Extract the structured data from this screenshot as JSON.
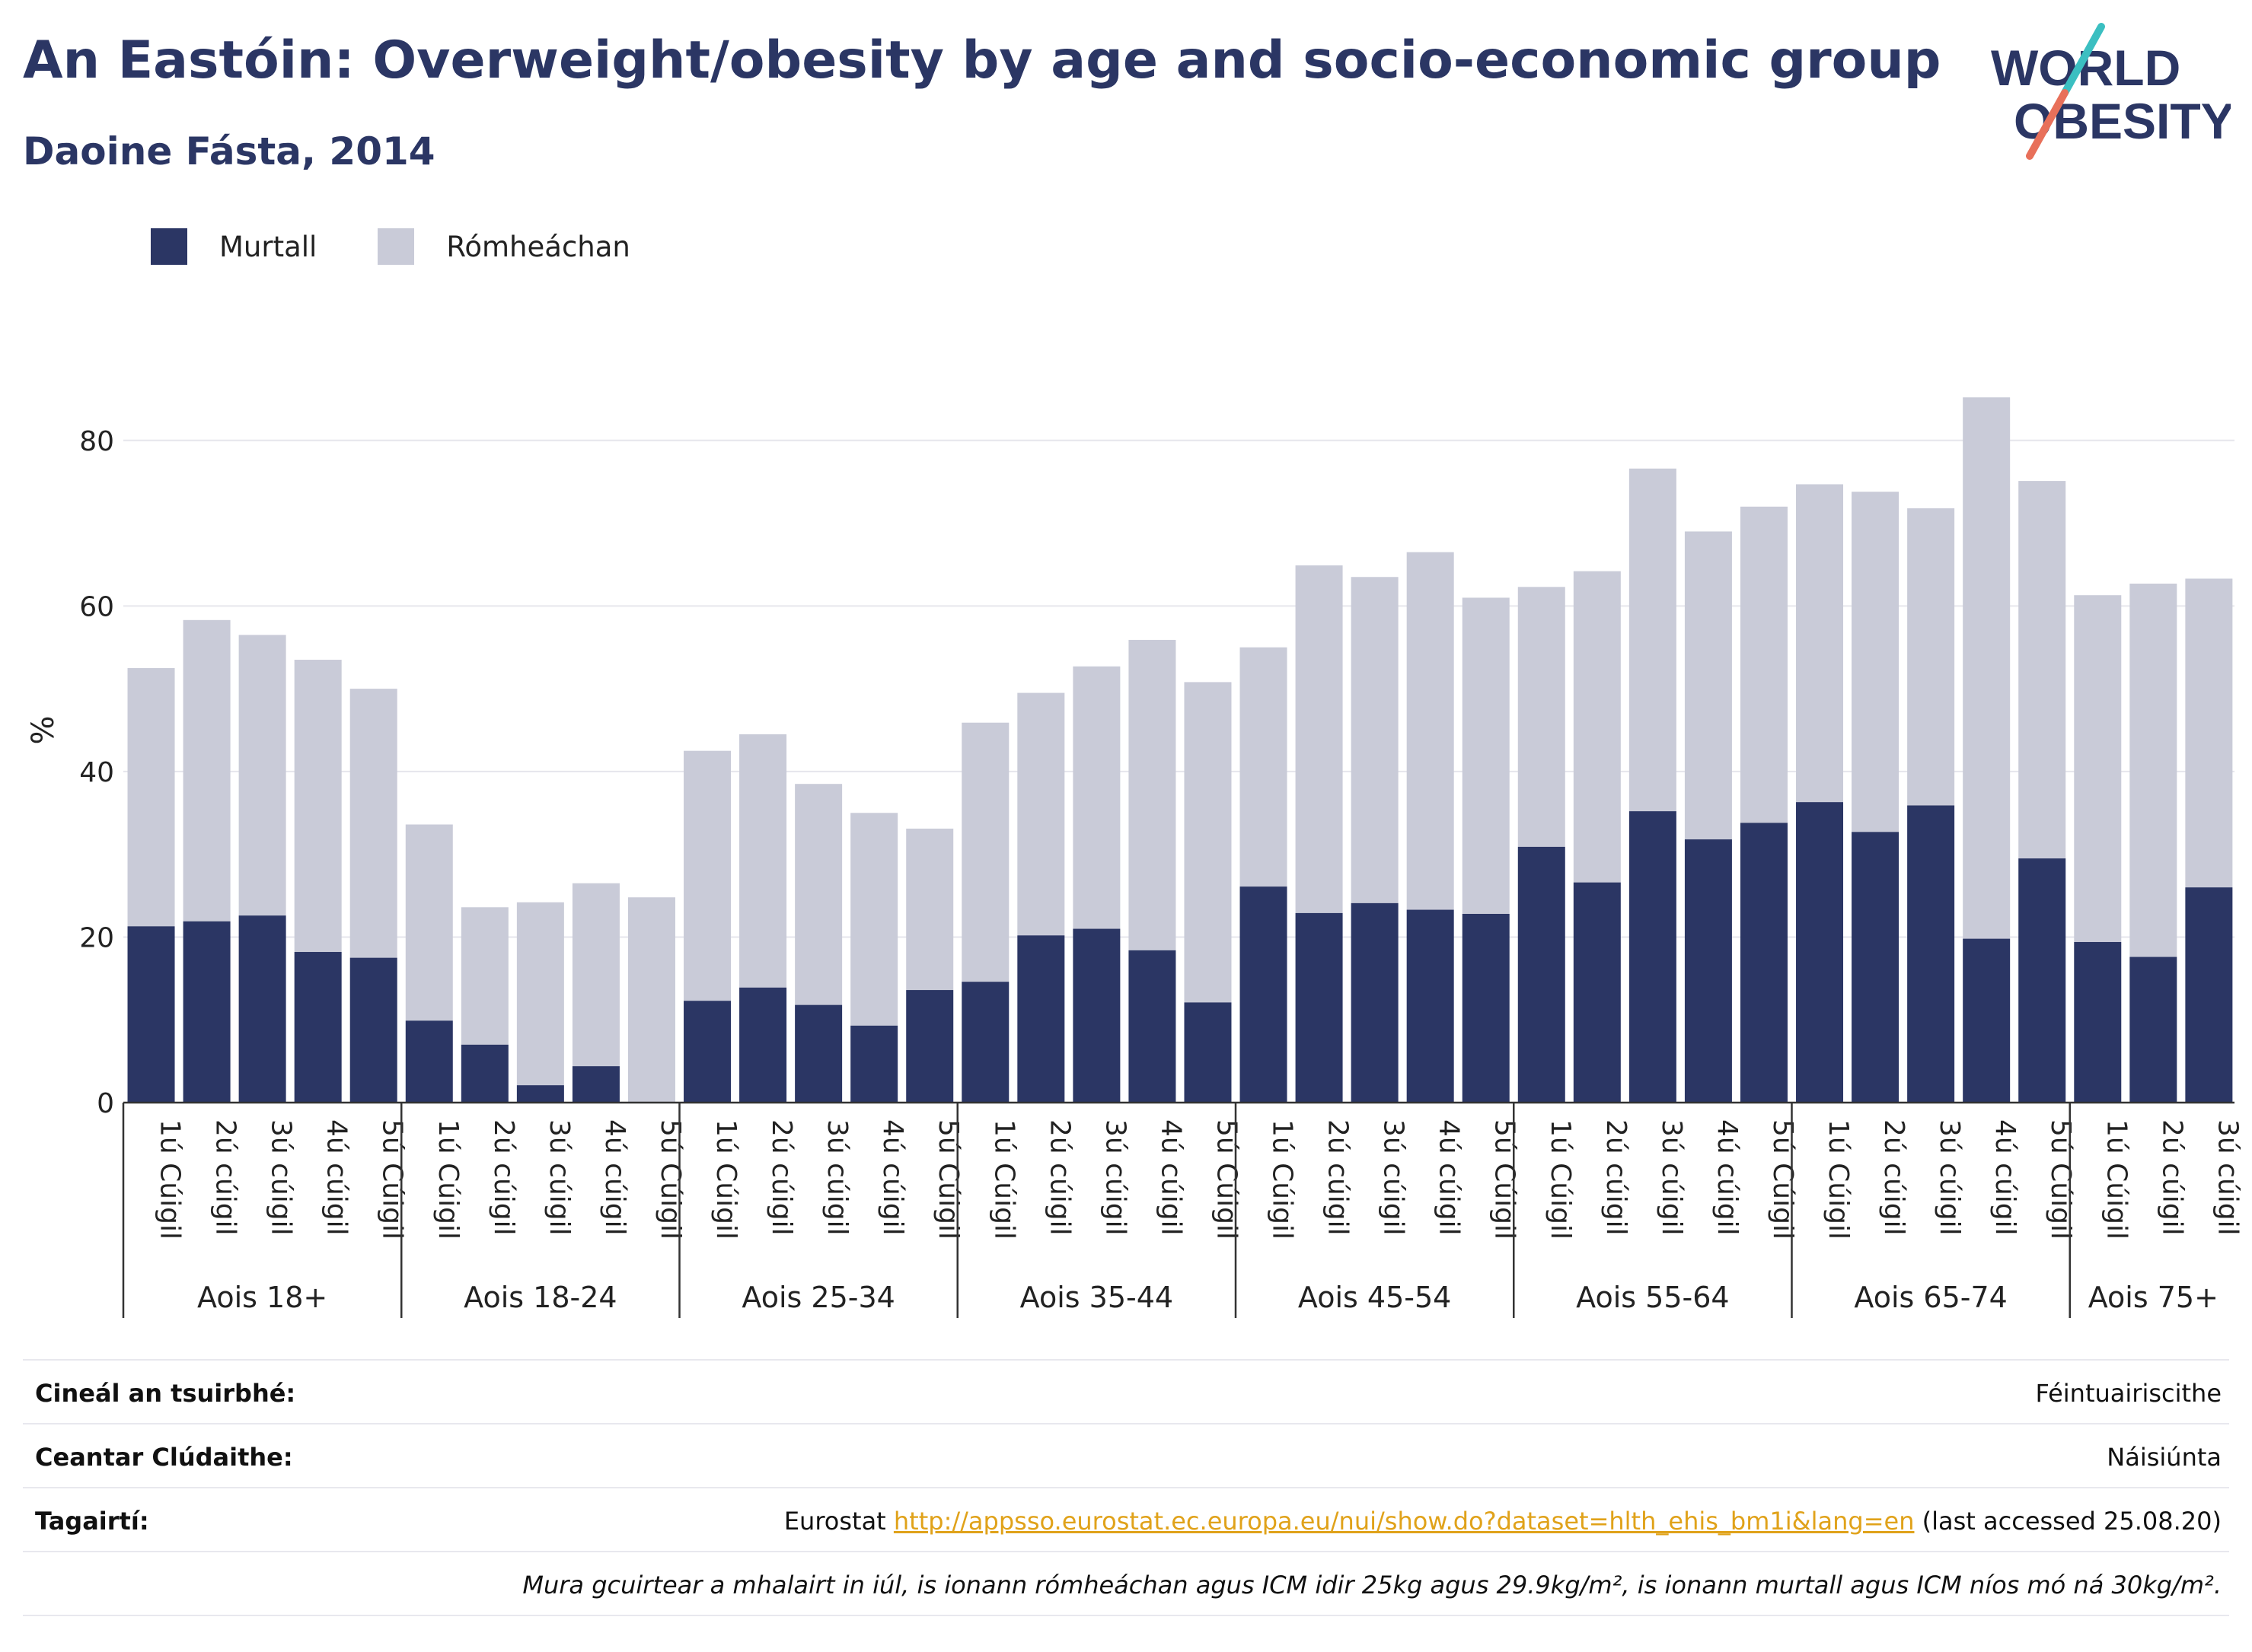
{
  "header": {
    "title": "An Eastóin: Overweight/obesity by age and socio-economic group",
    "subtitle": "Daoine Fásta, 2014"
  },
  "logo": {
    "line1": "WORLD",
    "line2": "OBESITY",
    "colors": {
      "text": "#2b3664",
      "slash_top": "#3bbfc1",
      "slash_bottom": "#e8705a"
    }
  },
  "legend": [
    {
      "label": "Murtall",
      "color": "#2b3664"
    },
    {
      "label": "Rómheáchan",
      "color": "#c9cbd8"
    }
  ],
  "chart_data": {
    "type": "bar",
    "stacked": true,
    "ylabel": "%",
    "ylim": [
      0,
      90
    ],
    "yticks": [
      0,
      20,
      40,
      60,
      80
    ],
    "grid": true,
    "legend_position": "top-left",
    "groups": [
      {
        "label": "Aois 18+",
        "categories": [
          "1ú Cúigil",
          "2ú cúigil",
          "3ú cúigil",
          "4ú cúigil",
          "5ú Cúigil"
        ],
        "murtall": [
          21.3,
          21.9,
          22.6,
          18.2,
          17.5
        ],
        "total": [
          52.5,
          58.3,
          56.5,
          53.5,
          50.0
        ]
      },
      {
        "label": "Aois 18-24",
        "categories": [
          "1ú Cúigil",
          "2ú cúigil",
          "3ú cúigil",
          "4ú cúigil",
          "5ú Cúigil"
        ],
        "murtall": [
          9.9,
          7.0,
          2.1,
          4.4,
          0
        ],
        "total": [
          33.6,
          23.6,
          24.2,
          26.5,
          24.8
        ]
      },
      {
        "label": "Aois 25-34",
        "categories": [
          "1ú Cúigil",
          "2ú cúigil",
          "3ú cúigil",
          "4ú cúigil",
          "5ú Cúigil"
        ],
        "murtall": [
          12.3,
          13.9,
          11.8,
          9.3,
          13.6
        ],
        "total": [
          42.5,
          44.5,
          38.5,
          35.0,
          33.1
        ]
      },
      {
        "label": "Aois 35-44",
        "categories": [
          "1ú Cúigil",
          "2ú cúigil",
          "3ú cúigil",
          "4ú cúigil",
          "5ú Cúigil"
        ],
        "murtall": [
          14.6,
          20.2,
          21.0,
          18.4,
          12.1
        ],
        "total": [
          45.9,
          49.5,
          52.7,
          55.9,
          50.8
        ]
      },
      {
        "label": "Aois 45-54",
        "categories": [
          "1ú Cúigil",
          "2ú cúigil",
          "3ú cúigil",
          "4ú cúigil",
          "5ú Cúigil"
        ],
        "murtall": [
          26.1,
          22.9,
          24.1,
          23.3,
          22.8
        ],
        "total": [
          55.0,
          64.9,
          63.5,
          66.5,
          61.0
        ]
      },
      {
        "label": "Aois 55-64",
        "categories": [
          "1ú Cúigil",
          "2ú cúigil",
          "3ú cúigil",
          "4ú cúigil",
          "5ú Cúigil"
        ],
        "murtall": [
          30.9,
          26.6,
          35.2,
          31.8,
          33.8
        ],
        "total": [
          62.3,
          64.2,
          76.6,
          69.0,
          72.0
        ]
      },
      {
        "label": "Aois 65-74",
        "categories": [
          "1ú Cúigil",
          "2ú cúigil",
          "3ú cúigil",
          "4ú cúigil",
          "5ú Cúigil"
        ],
        "murtall": [
          36.3,
          32.7,
          35.9,
          19.8,
          29.5
        ],
        "total": [
          74.7,
          73.8,
          71.8,
          85.2,
          75.1
        ]
      },
      {
        "label": "Aois 75+",
        "categories": [
          "1ú Cúigil",
          "2ú cúigil",
          "3ú cúigil"
        ],
        "murtall": [
          19.4,
          17.6,
          26.0
        ],
        "total": [
          61.3,
          62.7,
          63.3
        ]
      }
    ]
  },
  "info_table": [
    {
      "key": "Cineál an tsuirbhé:",
      "value": "Féintuairiscithe"
    },
    {
      "key": "Ceantar Clúdaithe:",
      "value": "Náisiúnta"
    },
    {
      "key": "Tagairtí:",
      "value_prefix": "Eurostat ",
      "link": "http://appsso.eurostat.ec.europa.eu/nui/show.do?dataset=hlth_ehis_bm1i&lang=en",
      "value_suffix": " (last accessed 25.08.20)"
    },
    {
      "key": "",
      "note": "Mura gcuirtear a mhalairt in iúl, is ionann rómheáchan agus ICM idir 25kg agus 29.9kg/m², is ionann murtall agus ICM níos mó ná 30kg/m²."
    }
  ]
}
